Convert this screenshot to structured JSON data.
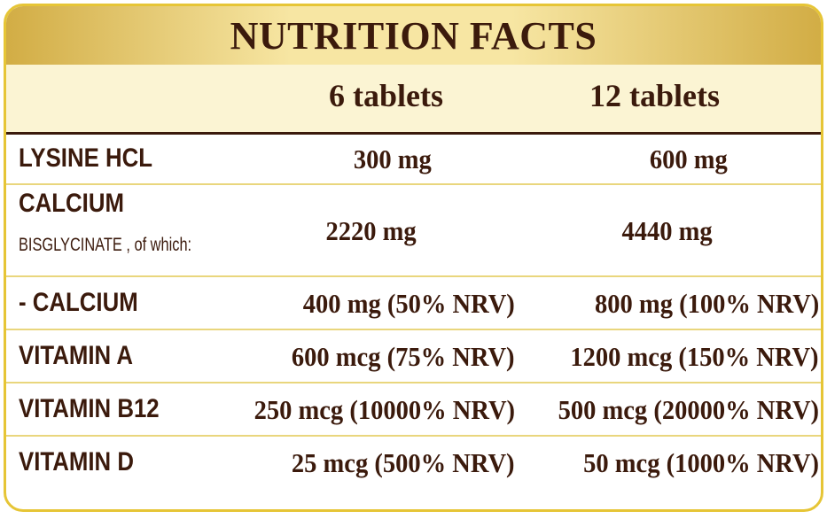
{
  "title": "NUTRITION FACTS",
  "columns": [
    "6 tablets",
    "12 tablets"
  ],
  "rows": [
    {
      "name": "LYSINE HCL",
      "sub": "",
      "col1": "300 mg",
      "col2": "600 mg"
    },
    {
      "name": "CALCIUM",
      "sub": "BISGLYCINATE , of which:",
      "col1": "2220 mg",
      "col2": "4440 mg"
    },
    {
      "name": "- CALCIUM",
      "sub": "",
      "col1": "400 mg (50% NRV)",
      "col2": "800 mg (100% NRV)"
    },
    {
      "name": "VITAMIN A",
      "sub": "",
      "col1": "600 mcg (75% NRV)",
      "col2": "1200 mcg (150% NRV)"
    },
    {
      "name": "VITAMIN B12",
      "sub": "",
      "col1": "250 mcg (10000% NRV)",
      "col2": "500 mcg (20000% NRV)"
    },
    {
      "name": "VITAMIN D",
      "sub": "",
      "col1": "25 mcg (500% NRV)",
      "col2": "50 mcg (1000% NRV)"
    }
  ],
  "colors": {
    "border": "#e6c536",
    "text": "#3b1a0c",
    "header_bg": "#fbf4d3",
    "divider": "#e9d67d"
  }
}
